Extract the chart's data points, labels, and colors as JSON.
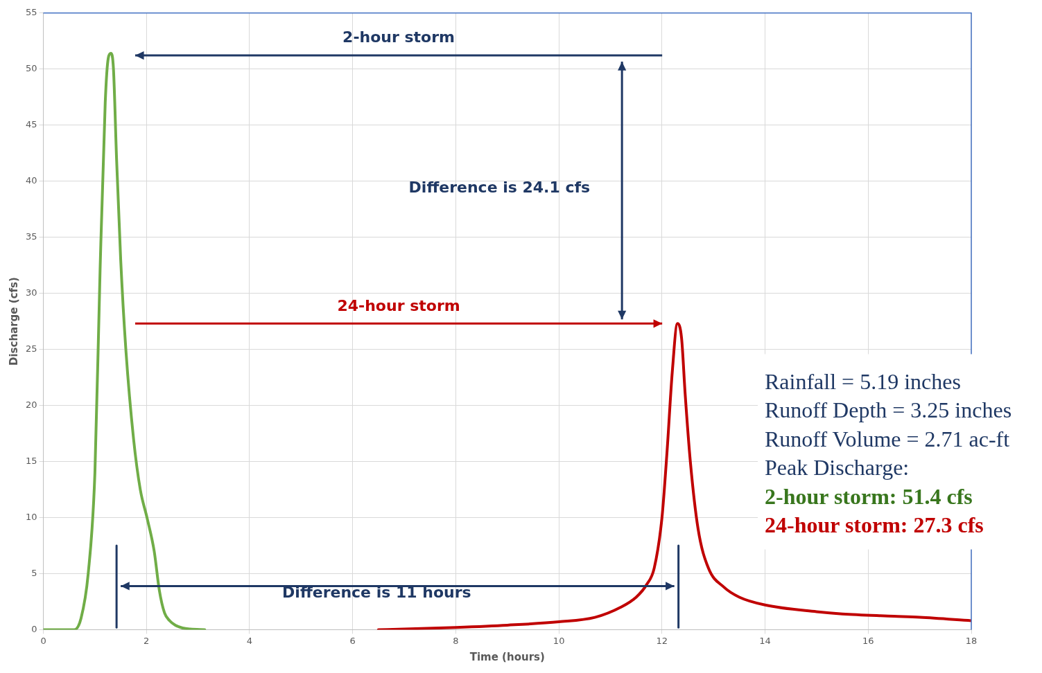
{
  "chart_data": {
    "type": "line",
    "xlabel": "Time (hours)",
    "ylabel": "Discharge (cfs)",
    "xlim": [
      0,
      18
    ],
    "xticks": [
      0,
      2,
      4,
      6,
      8,
      10,
      12,
      14,
      16,
      18
    ],
    "ylim": [
      0,
      55
    ],
    "yticks": [
      0,
      5,
      10,
      15,
      20,
      25,
      30,
      35,
      40,
      45,
      50,
      55
    ],
    "grid": true,
    "legend": false,
    "marker": "none",
    "line_style": "solid",
    "series": [
      {
        "color": "#70ad47",
        "x": [
          0,
          0.6,
          0.73,
          0.87,
          1.0,
          1.1,
          1.2,
          1.26,
          1.31,
          1.36,
          1.42,
          1.5,
          1.6,
          1.75,
          1.88,
          2.01,
          2.15,
          2.25,
          2.35,
          2.45,
          2.56,
          2.7,
          2.85,
          3.13
        ],
        "values": [
          0,
          0,
          1,
          5,
          14,
          32,
          47,
          51,
          51.4,
          50,
          42,
          33,
          25,
          17,
          12.5,
          10,
          7,
          3.5,
          1.5,
          0.8,
          0.4,
          0.15,
          0.05,
          0
        ]
      },
      {
        "type": "line",
        "color": "#1f3864",
        "x": [
          1.42,
          1.42
        ],
        "values": [
          0.2,
          7.5
        ]
      },
      {
        "type": "line",
        "color": "#1f3864",
        "x": [
          12.32,
          12.32
        ],
        "values": [
          0.2,
          7.5
        ]
      },
      {
        "color": "#c00000",
        "x": [
          6.5,
          7,
          8,
          9,
          10,
          10.7,
          11.2,
          11.5,
          11.7,
          11.85,
          12.0,
          12.1,
          12.2,
          12.3,
          12.38,
          12.45,
          12.55,
          12.7,
          12.9,
          13.2,
          13.5,
          14,
          15,
          15.5,
          16.5,
          17,
          18
        ],
        "values": [
          0,
          0.05,
          0.2,
          0.4,
          0.7,
          1.1,
          2,
          2.9,
          4,
          5.5,
          10,
          16,
          23,
          27.3,
          26,
          21,
          15,
          9,
          5.5,
          3.8,
          2.9,
          2.2,
          1.6,
          1.4,
          1.2,
          1.1,
          0.8
        ]
      }
    ],
    "annotations": [
      "2-hour storm",
      "24-hour storm",
      "Difference is 24.1 cfs",
      "Difference is 11 hours",
      "Rainfall = 5.19 inches",
      "Runoff Depth = 3.25 inches",
      "Runoff Volume = 2.71 ac-ft",
      "Peak Discharge:",
      "2-hour storm: 51.4 cfs",
      "24-hour storm: 27.3 cfs"
    ]
  }
}
